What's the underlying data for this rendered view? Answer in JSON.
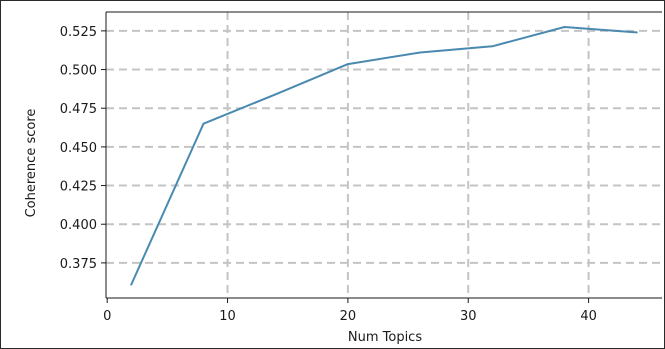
{
  "chart_data": {
    "type": "line",
    "title": "",
    "xlabel": "Num Topics",
    "ylabel": "Coherence score",
    "xlim": [
      -0.1,
      46.1
    ],
    "ylim": [
      0.3523,
      0.5372
    ],
    "x_ticks": [
      0,
      10,
      20,
      30,
      40
    ],
    "y_ticks": [
      0.375,
      0.4,
      0.425,
      0.45,
      0.475,
      0.5,
      0.525
    ],
    "x_tick_labels": [
      "0",
      "10",
      "20",
      "30",
      "40"
    ],
    "y_tick_labels": [
      "0.375",
      "0.400",
      "0.425",
      "0.450",
      "0.475",
      "0.500",
      "0.525"
    ],
    "grid": true,
    "series": [
      {
        "color": "#4a89b0",
        "x": [
          2,
          8,
          14,
          20,
          26,
          32,
          38,
          44
        ],
        "y": [
          0.361,
          0.465,
          0.484,
          0.5035,
          0.511,
          0.515,
          0.5275,
          0.524
        ]
      }
    ]
  }
}
